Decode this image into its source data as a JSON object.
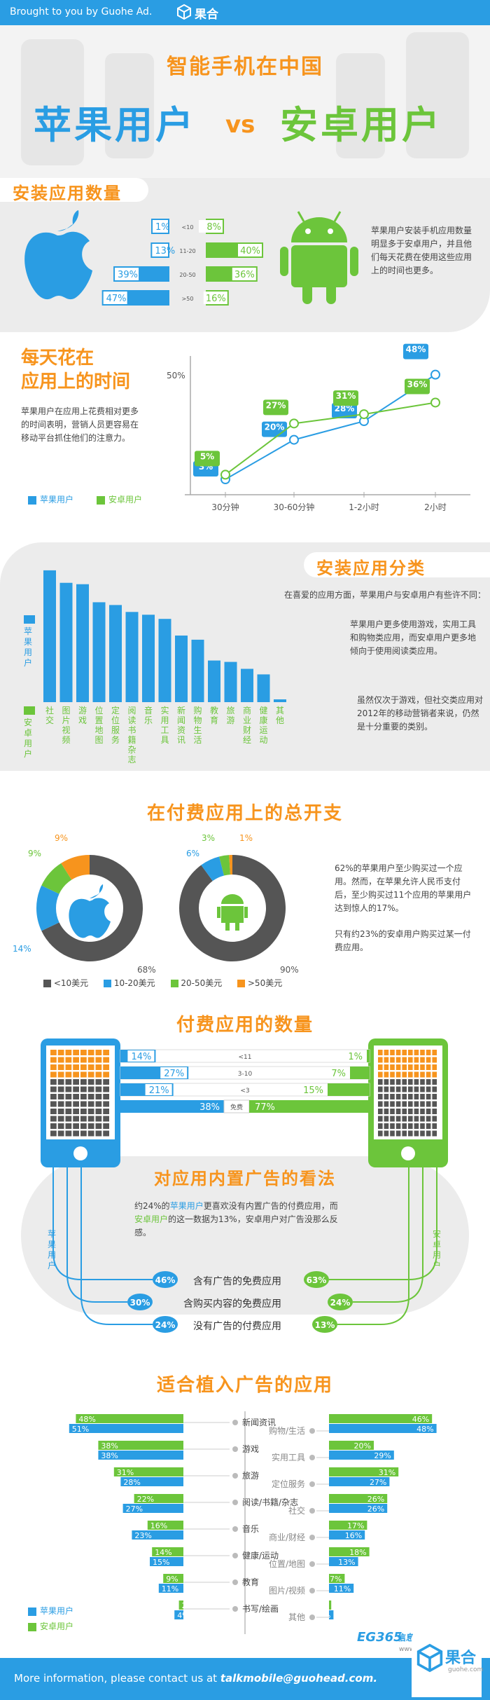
{
  "header": {
    "brought_by": "Brought to you by Guohe Ad.",
    "logo_text": "果合",
    "logo_sub": "guohe.com"
  },
  "hero": {
    "title": "智能手机在中国",
    "left": "苹果用户",
    "vs": "vs",
    "right": "安卓用户"
  },
  "colors": {
    "apple": "#2a9de3",
    "android": "#6cc53b",
    "orange": "#f7941d",
    "dark": "#555555",
    "gray_bg": "#ececec"
  },
  "sec1": {
    "title": "安装应用数量",
    "text": "苹果用户安装手机应用数量明显多于安卓用户，并且他们每天花费在使用这些应用上的时间也更多。",
    "chart_data": {
      "type": "bar",
      "categories": [
        "<10",
        "11-20",
        "20-50",
        ">50"
      ],
      "series": [
        {
          "name": "苹果用户",
          "values": [
            1,
            13,
            39,
            47
          ]
        },
        {
          "name": "安卓用户",
          "values": [
            8,
            40,
            36,
            16
          ]
        }
      ]
    }
  },
  "sec2": {
    "title_line1": "每天花在",
    "title_line2": "应用上的时间",
    "text": "苹果用户在应用上花费相对更多的时间表明，营销人员更容易在移动平台抓住他们的注意力。",
    "legend_apple": "苹果用户",
    "legend_android": "安卓用户",
    "ylabel_top": "50%",
    "chart_data": {
      "type": "line",
      "categories": [
        "30分钟",
        "30-60分钟",
        "1-2小时",
        "2小时"
      ],
      "series": [
        {
          "name": "苹果用户",
          "values": [
            3,
            20,
            28,
            48
          ]
        },
        {
          "name": "安卓用户",
          "values": [
            5,
            27,
            31,
            36
          ]
        }
      ],
      "ylim": [
        0,
        50
      ]
    }
  },
  "sec3": {
    "title": "安装应用分类",
    "text1": "在喜爱的应用方面，苹果用户与安卓用户有些许不同：",
    "text2": "苹果用户更多使用游戏，实用工具和购物类应用，而安卓用户更多地倾向于使用阅读类应用。",
    "text3": "虽然仅次于游戏，但社交类应用对2012年的移动营销者来说，仍然是十分重要的类别。",
    "legend_apple": "苹果用户",
    "legend_android": "安卓用户",
    "chart_data": {
      "type": "bar",
      "categories": [
        "社交",
        "图片视频",
        "游戏",
        "位置地图",
        "定位服务",
        "阅读书籍/杂志",
        "音乐",
        "实用工具",
        "新闻资讯",
        "购物生活",
        "教育",
        "旅游",
        "商业财经",
        "健康运动",
        "其他"
      ],
      "series": [
        {
          "name": "苹果用户",
          "values": [
            95,
            86,
            85,
            72,
            70,
            65,
            63,
            60,
            48,
            45,
            30,
            29,
            24,
            20,
            2
          ]
        }
      ]
    }
  },
  "sec4": {
    "title": "在付费应用上的总开支",
    "text1": "62%的苹果用户至少购买过一个应用。然而，在苹果允许人民币支付后，至少购买过11个应用的苹果用户达到惊人的17%。",
    "text2": "只有约23%的安卓用户购买过某一付费应用。",
    "legend": [
      "<10美元",
      "10-20美元",
      "20-50美元",
      ">50美元"
    ],
    "chart_data": [
      {
        "type": "pie",
        "name": "苹果用户",
        "categories": [
          "<10美元",
          "10-20美元",
          "20-50美元",
          ">50美元"
        ],
        "values": [
          68,
          14,
          9,
          9
        ]
      },
      {
        "type": "pie",
        "name": "安卓用户",
        "categories": [
          "<10美元",
          "10-20美元",
          "20-50美元",
          ">50美元"
        ],
        "values": [
          90,
          6,
          3,
          1
        ]
      }
    ],
    "labels_apple": [
      "68%",
      "14%",
      "9%",
      "9%"
    ],
    "labels_android": [
      "90%",
      "6%",
      "3%",
      "1%"
    ]
  },
  "sec5": {
    "title": "付费应用的数量",
    "chart_data": {
      "type": "bar",
      "categories": [
        "<11",
        "3-10",
        "<3",
        "免费"
      ],
      "series": [
        {
          "name": "苹果用户",
          "values": [
            14,
            27,
            21,
            38
          ]
        },
        {
          "name": "安卓用户",
          "values": [
            1,
            7,
            15,
            77
          ]
        }
      ]
    }
  },
  "sec6": {
    "title": "对应用内置广告的看法",
    "text_pre": "约24%的",
    "text_apple": "苹果用户",
    "text_mid": "更喜欢没有内置广告的付费应用，而",
    "text_android": "安卓用户",
    "text_post": "的这一数据为13%，安卓用户对广告没那么反感。",
    "side_apple": "苹果用户",
    "side_android": "安卓用户",
    "rows": [
      {
        "label": "含有广告的免费应用",
        "apple": "46%",
        "android": "63%"
      },
      {
        "label": "含购买内容的免费应用",
        "apple": "30%",
        "android": "24%"
      },
      {
        "label": "没有广告的付费应用",
        "apple": "24%",
        "android": "13%"
      }
    ]
  },
  "sec7": {
    "title": "适合植入广告的应用",
    "legend_apple": "苹果用户",
    "legend_android": "安卓用户",
    "chart_data": {
      "type": "bar",
      "categories": [
        "新闻资讯",
        "购物/生活",
        "游戏",
        "实用工具",
        "旅游",
        "定位服务",
        "阅读/书籍/杂志",
        "社交",
        "音乐",
        "商业/财经",
        "健康/运动",
        "位置/地图",
        "教育",
        "图片/视频",
        "书写/绘画",
        "其他"
      ],
      "series": [
        {
          "name": "安卓用户",
          "values": [
            48,
            46,
            38,
            20,
            31,
            31,
            22,
            26,
            16,
            17,
            14,
            18,
            9,
            7,
            2,
            1
          ]
        },
        {
          "name": "苹果用户",
          "values": [
            51,
            48,
            38,
            29,
            28,
            27,
            27,
            26,
            23,
            16,
            15,
            13,
            11,
            11,
            4,
            2
          ]
        }
      ]
    },
    "left_pairs": [
      {
        "cat": "新闻资讯",
        "g": 48,
        "b": 51
      },
      {
        "cat": "游戏",
        "g": 38,
        "b": 38
      },
      {
        "cat": "旅游",
        "g": 31,
        "b": 28
      },
      {
        "cat": "阅读/书籍/杂志",
        "g": 22,
        "b": 27
      },
      {
        "cat": "音乐",
        "g": 16,
        "b": 23
      },
      {
        "cat": "健康/运动",
        "g": 14,
        "b": 15
      },
      {
        "cat": "教育",
        "g": 9,
        "b": 11
      },
      {
        "cat": "书写/绘画",
        "g": 2,
        "b": 4
      }
    ],
    "right_pairs": [
      {
        "cat": "购物/生活",
        "g": 46,
        "b": 48
      },
      {
        "cat": "实用工具",
        "g": 20,
        "b": 29
      },
      {
        "cat": "定位服务",
        "g": 31,
        "b": 27
      },
      {
        "cat": "社交",
        "g": 26,
        "b": 26
      },
      {
        "cat": "商业/财经",
        "g": 17,
        "b": 16
      },
      {
        "cat": "位置/地图",
        "g": 18,
        "b": 13
      },
      {
        "cat": "图片/视频",
        "g": 7,
        "b": 11
      },
      {
        "cat": "其他",
        "g": 1,
        "b": 2
      }
    ]
  },
  "footer": {
    "eg_logo": "EG365",
    "eg_slogan": "信息互动多屏端",
    "eg_url": "www.eg365.cn | 编译制作",
    "contact_pre": "More information, please contact us at ",
    "contact_email": "talkmobile@guohead.com.",
    "logo_text": "果合",
    "logo_sub": "guohe.com"
  }
}
